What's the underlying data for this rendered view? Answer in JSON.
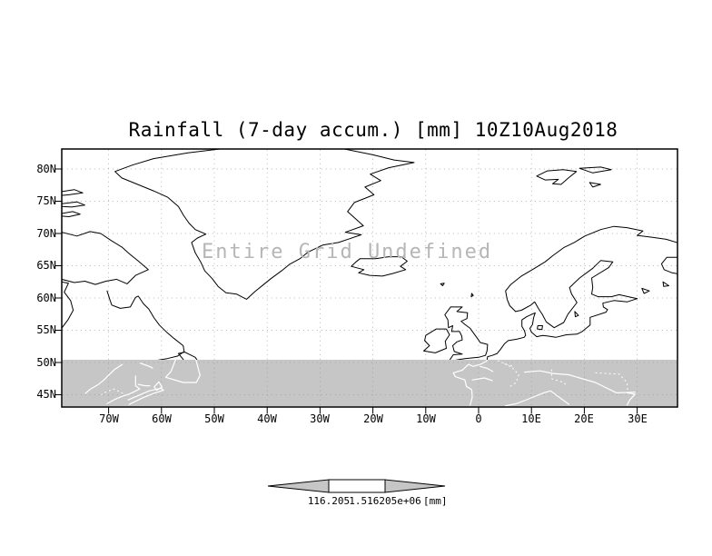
{
  "title": "Rainfall (7-day accum.) [mm] 10Z10Aug2018",
  "annotation": "Entire Grid Undefined",
  "axes": {
    "y_ticks": [
      "80N",
      "75N",
      "70N",
      "65N",
      "60N",
      "55N",
      "50N",
      "45N"
    ],
    "x_ticks": [
      "70W",
      "60W",
      "50W",
      "40W",
      "30W",
      "20W",
      "10W",
      "0",
      "10E",
      "20E",
      "30E"
    ]
  },
  "colorbar": {
    "left_value": "116.205",
    "right_value": "1.516205e+06",
    "units": "[mm]"
  },
  "colors": {
    "shade_gray": "#c6c6c6",
    "coastline": "#000000",
    "undefined_text_gray": "#b6b6b6",
    "background": "#ffffff"
  },
  "chart_data": {
    "type": "heatmap",
    "title": "Rainfall (7-day accum.) [mm] 10Z10Aug2018",
    "x_ticks": [
      "70W",
      "60W",
      "50W",
      "40W",
      "30W",
      "20W",
      "10W",
      "0",
      "10E",
      "20E",
      "30E"
    ],
    "y_ticks": [
      "80N",
      "75N",
      "70N",
      "65N",
      "60N",
      "55N",
      "50N",
      "45N"
    ],
    "x_range_deg_lon": [
      -79,
      38
    ],
    "y_range_deg_lat": [
      43,
      83
    ],
    "grid": true,
    "values": null,
    "annotation": "Entire Grid Undefined",
    "colorbar_labels": [
      "116.205",
      "1.516205e+06"
    ],
    "colorbar_units": "[mm]",
    "shaded_band_lat_range": [
      43,
      50.4
    ],
    "shaded_band_color": "#c6c6c6",
    "legend_position": "bottom-center"
  }
}
